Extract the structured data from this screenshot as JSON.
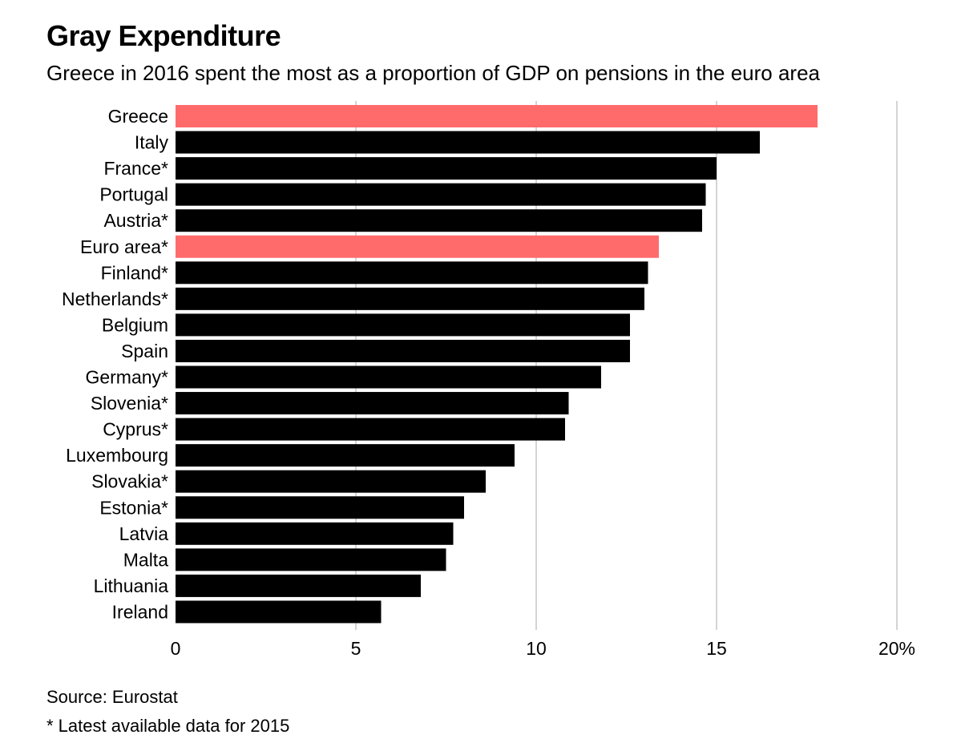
{
  "header": {
    "title": "Gray Expenditure",
    "subtitle": "Greece in 2016 spent the most as a proportion of GDP on pensions in the euro area"
  },
  "footer": {
    "source": "Source: Eurostat",
    "note": "* Latest available data for 2015"
  },
  "colors": {
    "bar": "#000000",
    "highlight": "#ff6b6b",
    "grid": "#d4d4d4"
  },
  "chart_data": {
    "type": "bar",
    "orientation": "horizontal",
    "categories": [
      "Greece",
      "Italy",
      "France*",
      "Portugal",
      "Austria*",
      "Euro area*",
      "Finland*",
      "Netherlands*",
      "Belgium",
      "Spain",
      "Germany*",
      "Slovenia*",
      "Cyprus*",
      "Luxembourg",
      "Slovakia*",
      "Estonia*",
      "Latvia",
      "Malta",
      "Lithuania",
      "Ireland"
    ],
    "values": [
      17.8,
      16.2,
      15.0,
      14.7,
      14.6,
      13.4,
      13.1,
      13.0,
      12.6,
      12.6,
      11.8,
      10.9,
      10.8,
      9.4,
      8.6,
      8.0,
      7.7,
      7.5,
      6.8,
      5.7
    ],
    "highlighted": [
      "Greece",
      "Euro area*"
    ],
    "xlim": [
      0,
      20
    ],
    "xticks": [
      0,
      5,
      10,
      15,
      20
    ],
    "xtick_labels": [
      "0",
      "5",
      "10",
      "15",
      "20%"
    ],
    "grid": "vertical",
    "legend": "none"
  }
}
